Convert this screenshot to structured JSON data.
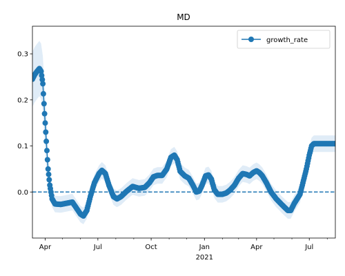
{
  "chart_data": {
    "type": "line",
    "title": "MD",
    "xlabel": "",
    "ylabel": "",
    "x_range": [
      "2020-03-10",
      "2021-08-15"
    ],
    "ylim": [
      -0.1,
      0.36
    ],
    "yticks": [
      0.0,
      0.1,
      0.2,
      0.3
    ],
    "ytick_labels": [
      "0.0",
      "0.1",
      "0.2",
      "0.3"
    ],
    "x_major_ticks": [
      {
        "date": "2020-04-01",
        "label": "Apr"
      },
      {
        "date": "2020-07-01",
        "label": "Jul"
      },
      {
        "date": "2020-10-01",
        "label": "Oct"
      },
      {
        "date": "2021-01-01",
        "label": "Jan"
      },
      {
        "date": "2021-04-01",
        "label": "Apr"
      },
      {
        "date": "2021-07-01",
        "label": "Jul"
      }
    ],
    "x_year_label": {
      "date": "2021-01-01",
      "label": "2021"
    },
    "x_minor_ticks": [
      "2020-05-01",
      "2020-06-01",
      "2020-08-01",
      "2020-09-01",
      "2020-11-01",
      "2020-12-01",
      "2021-02-01",
      "2021-03-01",
      "2021-05-01",
      "2021-06-01",
      "2021-08-01"
    ],
    "reference_line": {
      "y": 0.0,
      "style": "dashed"
    },
    "legend": {
      "placement": "top-right",
      "entries": [
        "growth_rate"
      ]
    },
    "grid": false,
    "colors": {
      "series": "#1f77b4",
      "band": "#dbe9f6",
      "reference": "#1f77b4"
    },
    "series": [
      {
        "name": "growth_rate",
        "keypoints": [
          [
            "2020-03-10",
            0.245
          ],
          [
            "2020-03-14",
            0.255
          ],
          [
            "2020-03-18",
            0.262
          ],
          [
            "2020-03-22",
            0.268
          ],
          [
            "2020-03-25",
            0.262
          ],
          [
            "2020-03-28",
            0.235
          ],
          [
            "2020-03-31",
            0.17
          ],
          [
            "2020-04-03",
            0.11
          ],
          [
            "2020-04-06",
            0.05
          ],
          [
            "2020-04-09",
            0.015
          ],
          [
            "2020-04-13",
            -0.015
          ],
          [
            "2020-04-18",
            -0.026
          ],
          [
            "2020-04-28",
            -0.027
          ],
          [
            "2020-05-10",
            -0.024
          ],
          [
            "2020-05-18",
            -0.022
          ],
          [
            "2020-05-25",
            -0.035
          ],
          [
            "2020-06-01",
            -0.048
          ],
          [
            "2020-06-06",
            -0.052
          ],
          [
            "2020-06-12",
            -0.04
          ],
          [
            "2020-06-18",
            -0.01
          ],
          [
            "2020-06-25",
            0.02
          ],
          [
            "2020-07-03",
            0.04
          ],
          [
            "2020-07-08",
            0.047
          ],
          [
            "2020-07-14",
            0.04
          ],
          [
            "2020-07-20",
            0.015
          ],
          [
            "2020-07-28",
            -0.01
          ],
          [
            "2020-08-03",
            -0.015
          ],
          [
            "2020-08-10",
            -0.01
          ],
          [
            "2020-08-20",
            0.002
          ],
          [
            "2020-08-30",
            0.012
          ],
          [
            "2020-09-10",
            0.008
          ],
          [
            "2020-09-20",
            0.01
          ],
          [
            "2020-09-28",
            0.02
          ],
          [
            "2020-10-05",
            0.033
          ],
          [
            "2020-10-12",
            0.036
          ],
          [
            "2020-10-20",
            0.036
          ],
          [
            "2020-10-28",
            0.05
          ],
          [
            "2020-11-04",
            0.075
          ],
          [
            "2020-11-10",
            0.08
          ],
          [
            "2020-11-15",
            0.07
          ],
          [
            "2020-11-20",
            0.045
          ],
          [
            "2020-11-28",
            0.035
          ],
          [
            "2020-12-05",
            0.03
          ],
          [
            "2020-12-12",
            0.015
          ],
          [
            "2020-12-18",
            0.0
          ],
          [
            "2020-12-23",
            0.002
          ],
          [
            "2020-12-28",
            0.015
          ],
          [
            "2021-01-03",
            0.035
          ],
          [
            "2021-01-08",
            0.037
          ],
          [
            "2021-01-13",
            0.028
          ],
          [
            "2021-01-18",
            0.005
          ],
          [
            "2021-01-24",
            -0.005
          ],
          [
            "2021-02-01",
            -0.005
          ],
          [
            "2021-02-08",
            -0.002
          ],
          [
            "2021-02-15",
            0.005
          ],
          [
            "2021-02-22",
            0.015
          ],
          [
            "2021-03-01",
            0.03
          ],
          [
            "2021-03-08",
            0.04
          ],
          [
            "2021-03-15",
            0.038
          ],
          [
            "2021-03-20",
            0.035
          ],
          [
            "2021-03-26",
            0.042
          ],
          [
            "2021-04-01",
            0.046
          ],
          [
            "2021-04-06",
            0.042
          ],
          [
            "2021-04-11",
            0.035
          ],
          [
            "2021-04-18",
            0.02
          ],
          [
            "2021-04-26",
            0.0
          ],
          [
            "2021-05-05",
            -0.015
          ],
          [
            "2021-05-15",
            -0.028
          ],
          [
            "2021-05-25",
            -0.04
          ],
          [
            "2021-05-30",
            -0.04
          ],
          [
            "2021-06-05",
            -0.025
          ],
          [
            "2021-06-10",
            -0.015
          ],
          [
            "2021-06-15",
            -0.005
          ],
          [
            "2021-06-20",
            0.02
          ],
          [
            "2021-06-26",
            0.05
          ],
          [
            "2021-07-01",
            0.08
          ],
          [
            "2021-07-05",
            0.1
          ],
          [
            "2021-07-09",
            0.105
          ],
          [
            "2021-08-15",
            0.105
          ]
        ],
        "band_halfwidth_early": 0.06,
        "band_halfwidth": 0.018
      }
    ]
  }
}
